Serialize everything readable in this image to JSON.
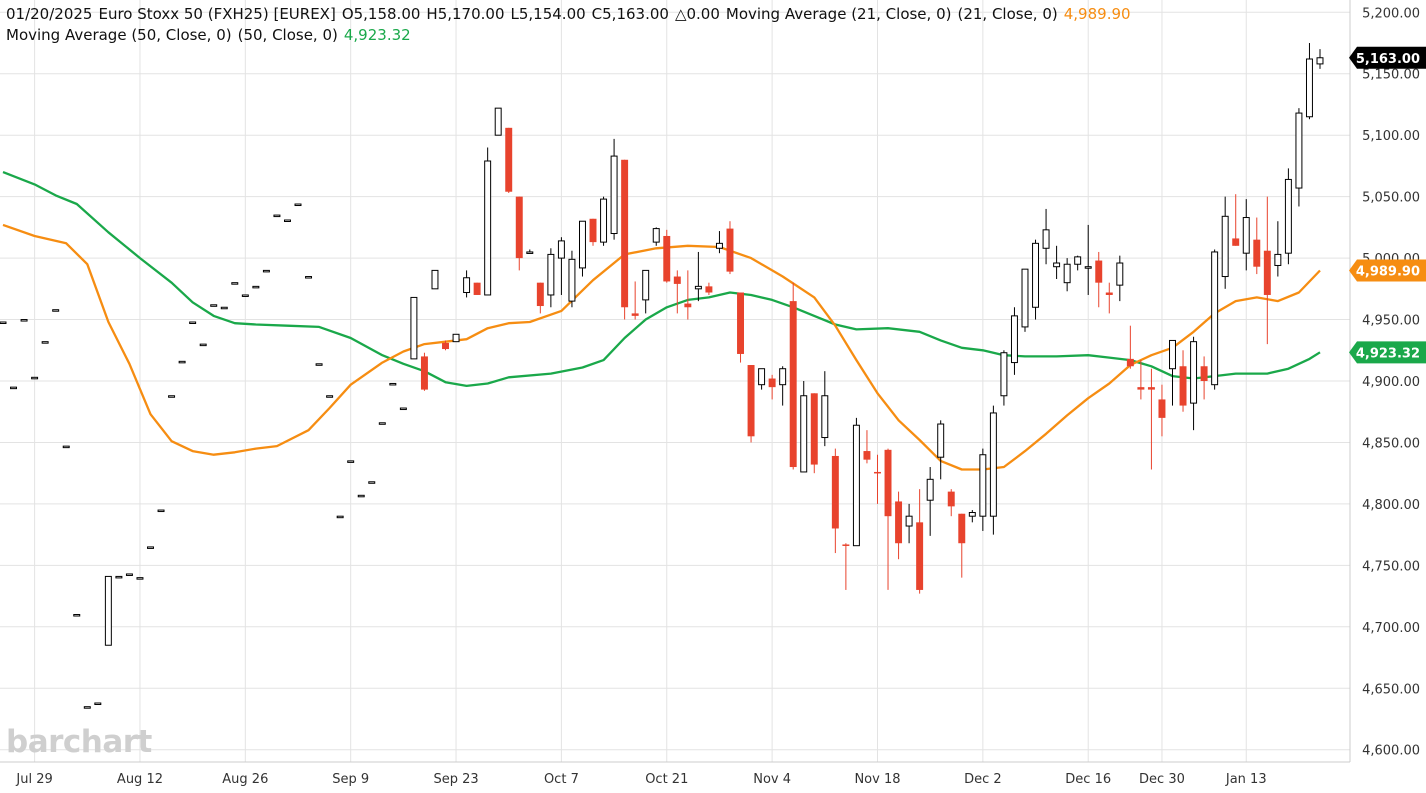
{
  "header": {
    "date": "01/20/2025",
    "instrument": "Euro Stoxx 50 (FXH25) [EUREX]",
    "open": "O5,158.00",
    "high": "H5,170.00",
    "low": "L5,154.00",
    "close": "C5,163.00",
    "change": "△0.00",
    "ma21_label": "Moving Average (21, Close, 0)",
    "ma21_params": "(21, Close, 0)",
    "ma21_value": "4,989.90",
    "ma50_label": "Moving Average (50, Close, 0)",
    "ma50_params": "(50, Close, 0)",
    "ma50_value": "4,923.32"
  },
  "logo": "barchart",
  "colors": {
    "up": "#000000",
    "down": "#e8432d",
    "ma21": "#f68d12",
    "ma50": "#1aa84a",
    "grid": "#e3e3e3",
    "price_tag": "#000000"
  },
  "chart_data": {
    "type": "candlestick",
    "title": "Euro Stoxx 50 (FXH25) [EUREX]",
    "ylim": [
      4590,
      5210
    ],
    "y_ticks": [
      5200,
      5150,
      5100,
      5050,
      5000,
      4950,
      4900,
      4850,
      4800,
      4750,
      4700,
      4650,
      4600
    ],
    "y_tick_labels": [
      "5,200.00",
      "5,150.00",
      "5,100.00",
      "5,050.00",
      "5,000.00",
      "4,950.00",
      "4,900.00",
      "4,850.00",
      "4,800.00",
      "4,750.00",
      "4,700.00",
      "4,650.00",
      "4,600.00"
    ],
    "x_tick_labels": [
      "Jul 29",
      "Aug 12",
      "Aug 26",
      "Sep 9",
      "Sep 23",
      "Oct 7",
      "Oct 21",
      "Nov 4",
      "Nov 18",
      "Dec 2",
      "Dec 16",
      "Dec 30",
      "Jan 13"
    ],
    "x_tick_index": [
      3,
      13,
      23,
      33,
      43,
      53,
      63,
      73,
      83,
      93,
      103,
      110,
      118
    ],
    "last_price_label": "5,163.00",
    "ma21_label": "4,989.90",
    "ma50_label": "4,923.32",
    "candles": [
      {
        "o": 4948,
        "h": 4948,
        "l": 4948,
        "c": 4948
      },
      {
        "o": 4895,
        "h": 4895,
        "l": 4895,
        "c": 4895
      },
      {
        "o": 4950,
        "h": 4950,
        "l": 4950,
        "c": 4950
      },
      {
        "o": 4903,
        "h": 4903,
        "l": 4903,
        "c": 4903
      },
      {
        "o": 4932,
        "h": 4932,
        "l": 4932,
        "c": 4932
      },
      {
        "o": 4958,
        "h": 4958,
        "l": 4958,
        "c": 4958
      },
      {
        "o": 4847,
        "h": 4847,
        "l": 4847,
        "c": 4847
      },
      {
        "o": 4710,
        "h": 4710,
        "l": 4710,
        "c": 4710
      },
      {
        "o": 4635,
        "h": 4635,
        "l": 4635,
        "c": 4635
      },
      {
        "o": 4638,
        "h": 4638,
        "l": 4638,
        "c": 4638
      },
      {
        "o": 4685,
        "h": 4741,
        "l": 4685,
        "c": 4741
      },
      {
        "o": 4741,
        "h": 4741,
        "l": 4741,
        "c": 4741
      },
      {
        "o": 4743,
        "h": 4743,
        "l": 4743,
        "c": 4743
      },
      {
        "o": 4740,
        "h": 4740,
        "l": 4740,
        "c": 4740
      },
      {
        "o": 4765,
        "h": 4765,
        "l": 4765,
        "c": 4765
      },
      {
        "o": 4795,
        "h": 4795,
        "l": 4795,
        "c": 4795
      },
      {
        "o": 4888,
        "h": 4888,
        "l": 4888,
        "c": 4888
      },
      {
        "o": 4916,
        "h": 4916,
        "l": 4916,
        "c": 4916
      },
      {
        "o": 4948,
        "h": 4948,
        "l": 4948,
        "c": 4948
      },
      {
        "o": 4930,
        "h": 4930,
        "l": 4930,
        "c": 4930
      },
      {
        "o": 4962,
        "h": 4962,
        "l": 4962,
        "c": 4962
      },
      {
        "o": 4960,
        "h": 4960,
        "l": 4960,
        "c": 4960
      },
      {
        "o": 4980,
        "h": 4980,
        "l": 4980,
        "c": 4980
      },
      {
        "o": 4970,
        "h": 4970,
        "l": 4970,
        "c": 4970
      },
      {
        "o": 4977,
        "h": 4977,
        "l": 4977,
        "c": 4977
      },
      {
        "o": 4990,
        "h": 4990,
        "l": 4990,
        "c": 4990
      },
      {
        "o": 5035,
        "h": 5035,
        "l": 5035,
        "c": 5035
      },
      {
        "o": 5031,
        "h": 5031,
        "l": 5031,
        "c": 5031
      },
      {
        "o": 5044,
        "h": 5044,
        "l": 5044,
        "c": 5044
      },
      {
        "o": 4985,
        "h": 4985,
        "l": 4985,
        "c": 4985
      },
      {
        "o": 4914,
        "h": 4914,
        "l": 4914,
        "c": 4914
      },
      {
        "o": 4888,
        "h": 4888,
        "l": 4888,
        "c": 4888
      },
      {
        "o": 4790,
        "h": 4790,
        "l": 4790,
        "c": 4790
      },
      {
        "o": 4835,
        "h": 4835,
        "l": 4835,
        "c": 4835
      },
      {
        "o": 4807,
        "h": 4807,
        "l": 4807,
        "c": 4807
      },
      {
        "o": 4818,
        "h": 4818,
        "l": 4818,
        "c": 4818
      },
      {
        "o": 4866,
        "h": 4866,
        "l": 4866,
        "c": 4866
      },
      {
        "o": 4898,
        "h": 4898,
        "l": 4898,
        "c": 4898
      },
      {
        "o": 4878,
        "h": 4878,
        "l": 4878,
        "c": 4878
      },
      {
        "o": 4918,
        "h": 4968,
        "l": 4918,
        "c": 4968
      },
      {
        "o": 4920,
        "h": 4923,
        "l": 4892,
        "c": 4893
      },
      {
        "o": 4975,
        "h": 4990,
        "l": 4975,
        "c": 4990
      },
      {
        "o": 4931,
        "h": 4933,
        "l": 4925,
        "c": 4926
      },
      {
        "o": 4932,
        "h": 4938,
        "l": 4932,
        "c": 4938
      },
      {
        "o": 4972,
        "h": 4990,
        "l": 4968,
        "c": 4984
      },
      {
        "o": 4980,
        "h": 4980,
        "l": 4970,
        "c": 4970
      },
      {
        "o": 4970,
        "h": 5090,
        "l": 4970,
        "c": 5079
      },
      {
        "o": 5100,
        "h": 5122,
        "l": 5100,
        "c": 5122
      },
      {
        "o": 5106,
        "h": 5106,
        "l": 5053,
        "c": 5054
      },
      {
        "o": 5050,
        "h": 5050,
        "l": 4990,
        "c": 5000
      },
      {
        "o": 5004,
        "h": 5007,
        "l": 5004,
        "c": 5005
      },
      {
        "o": 4980,
        "h": 4980,
        "l": 4955,
        "c": 4961
      },
      {
        "o": 4970,
        "h": 5008,
        "l": 4960,
        "c": 5003
      },
      {
        "o": 5000,
        "h": 5017,
        "l": 4970,
        "c": 5014
      },
      {
        "o": 4965,
        "h": 5006,
        "l": 4960,
        "c": 4999
      },
      {
        "o": 4992,
        "h": 5030,
        "l": 4985,
        "c": 5030
      },
      {
        "o": 5032,
        "h": 5032,
        "l": 5010,
        "c": 5013
      },
      {
        "o": 5013,
        "h": 5050,
        "l": 5010,
        "c": 5048
      },
      {
        "o": 5020,
        "h": 5097,
        "l": 5015,
        "c": 5083
      },
      {
        "o": 5080,
        "h": 5080,
        "l": 4950,
        "c": 4960
      },
      {
        "o": 4955,
        "h": 4981,
        "l": 4950,
        "c": 4953
      },
      {
        "o": 4966,
        "h": 4990,
        "l": 4955,
        "c": 4990
      },
      {
        "o": 5013,
        "h": 5025,
        "l": 5010,
        "c": 5024
      },
      {
        "o": 5018,
        "h": 5023,
        "l": 4980,
        "c": 4981
      },
      {
        "o": 4985,
        "h": 4990,
        "l": 4955,
        "c": 4979
      },
      {
        "o": 4963,
        "h": 4990,
        "l": 4950,
        "c": 4960
      },
      {
        "o": 4975,
        "h": 5005,
        "l": 4965,
        "c": 4977
      },
      {
        "o": 4977,
        "h": 4980,
        "l": 4970,
        "c": 4972
      },
      {
        "o": 5008,
        "h": 5022,
        "l": 5004,
        "c": 5012
      },
      {
        "o": 5024,
        "h": 5030,
        "l": 4987,
        "c": 4989
      },
      {
        "o": 4972,
        "h": 4972,
        "l": 4915,
        "c": 4922
      },
      {
        "o": 4913,
        "h": 4913,
        "l": 4850,
        "c": 4855
      },
      {
        "o": 4897,
        "h": 4910,
        "l": 4893,
        "c": 4910
      },
      {
        "o": 4902,
        "h": 4905,
        "l": 4885,
        "c": 4895
      },
      {
        "o": 4897,
        "h": 4912,
        "l": 4880,
        "c": 4910
      },
      {
        "o": 4965,
        "h": 4980,
        "l": 4828,
        "c": 4830
      },
      {
        "o": 4826,
        "h": 4900,
        "l": 4826,
        "c": 4888
      },
      {
        "o": 4890,
        "h": 4890,
        "l": 4825,
        "c": 4832
      },
      {
        "o": 4854,
        "h": 4908,
        "l": 4847,
        "c": 4888
      },
      {
        "o": 4839,
        "h": 4845,
        "l": 4760,
        "c": 4780
      },
      {
        "o": 4767,
        "h": 4768,
        "l": 4730,
        "c": 4766
      },
      {
        "o": 4766,
        "h": 4870,
        "l": 4766,
        "c": 4864
      },
      {
        "o": 4843,
        "h": 4860,
        "l": 4833,
        "c": 4836
      },
      {
        "o": 4826,
        "h": 4840,
        "l": 4800,
        "c": 4825
      },
      {
        "o": 4844,
        "h": 4845,
        "l": 4730,
        "c": 4790
      },
      {
        "o": 4802,
        "h": 4810,
        "l": 4755,
        "c": 4768
      },
      {
        "o": 4782,
        "h": 4800,
        "l": 4768,
        "c": 4790
      },
      {
        "o": 4785,
        "h": 4812,
        "l": 4727,
        "c": 4730
      },
      {
        "o": 4803,
        "h": 4830,
        "l": 4774,
        "c": 4820
      },
      {
        "o": 4838,
        "h": 4868,
        "l": 4820,
        "c": 4865
      },
      {
        "o": 4810,
        "h": 4812,
        "l": 4790,
        "c": 4798
      },
      {
        "o": 4792,
        "h": 4792,
        "l": 4740,
        "c": 4768
      },
      {
        "o": 4790,
        "h": 4795,
        "l": 4785,
        "c": 4793
      },
      {
        "o": 4790,
        "h": 4845,
        "l": 4778,
        "c": 4840
      },
      {
        "o": 4790,
        "h": 4880,
        "l": 4775,
        "c": 4874
      },
      {
        "o": 4888,
        "h": 4925,
        "l": 4880,
        "c": 4923
      },
      {
        "o": 4915,
        "h": 4960,
        "l": 4905,
        "c": 4953
      },
      {
        "o": 4944,
        "h": 4990,
        "l": 4940,
        "c": 4991
      },
      {
        "o": 4960,
        "h": 5015,
        "l": 4950,
        "c": 5012
      },
      {
        "o": 5008,
        "h": 5040,
        "l": 4995,
        "c": 5023
      },
      {
        "o": 4993,
        "h": 5010,
        "l": 4983,
        "c": 4996
      },
      {
        "o": 4980,
        "h": 5000,
        "l": 4973,
        "c": 4995
      },
      {
        "o": 4995,
        "h": 5002,
        "l": 4990,
        "c": 5001
      },
      {
        "o": 4993,
        "h": 5027,
        "l": 4970,
        "c": 4993
      },
      {
        "o": 4998,
        "h": 5005,
        "l": 4960,
        "c": 4980
      },
      {
        "o": 4972,
        "h": 4980,
        "l": 4955,
        "c": 4970
      },
      {
        "o": 4978,
        "h": 5002,
        "l": 4965,
        "c": 4996
      },
      {
        "o": 4918,
        "h": 4945,
        "l": 4910,
        "c": 4912
      },
      {
        "o": 4895,
        "h": 4917,
        "l": 4885,
        "c": 4893
      },
      {
        "o": 4895,
        "h": 4910,
        "l": 4828,
        "c": 4893
      },
      {
        "o": 4885,
        "h": 4897,
        "l": 4855,
        "c": 4870
      },
      {
        "o": 4910,
        "h": 4933,
        "l": 4880,
        "c": 4933
      },
      {
        "o": 4912,
        "h": 4925,
        "l": 4875,
        "c": 4880
      },
      {
        "o": 4882,
        "h": 4936,
        "l": 4860,
        "c": 4932
      },
      {
        "o": 4912,
        "h": 4920,
        "l": 4885,
        "c": 4900
      },
      {
        "o": 4897,
        "h": 5007,
        "l": 4893,
        "c": 5005
      },
      {
        "o": 4985,
        "h": 5050,
        "l": 4975,
        "c": 5034
      },
      {
        "o": 5016,
        "h": 5052,
        "l": 5010,
        "c": 5010
      },
      {
        "o": 5004,
        "h": 5048,
        "l": 4990,
        "c": 5033
      },
      {
        "o": 5015,
        "h": 5033,
        "l": 4987,
        "c": 4993
      },
      {
        "o": 5006,
        "h": 5050,
        "l": 4930,
        "c": 4970
      },
      {
        "o": 4994,
        "h": 5030,
        "l": 4985,
        "c": 5003
      },
      {
        "o": 5004,
        "h": 5073,
        "l": 4995,
        "c": 5064
      },
      {
        "o": 5057,
        "h": 5122,
        "l": 5042,
        "c": 5118
      },
      {
        "o": 5115,
        "h": 5175,
        "l": 5113,
        "c": 5162
      },
      {
        "o": 5158,
        "h": 5170,
        "l": 5154,
        "c": 5163
      }
    ],
    "ma21": [
      [
        0,
        5027
      ],
      [
        3,
        5018
      ],
      [
        6,
        5012
      ],
      [
        8,
        4995
      ],
      [
        10,
        4948
      ],
      [
        12,
        4914
      ],
      [
        14,
        4873
      ],
      [
        16,
        4851
      ],
      [
        18,
        4843
      ],
      [
        20,
        4840
      ],
      [
        22,
        4842
      ],
      [
        24,
        4845
      ],
      [
        26,
        4847
      ],
      [
        29,
        4860
      ],
      [
        31,
        4878
      ],
      [
        33,
        4897
      ],
      [
        36,
        4915
      ],
      [
        38,
        4924
      ],
      [
        40,
        4930
      ],
      [
        42,
        4932
      ],
      [
        44,
        4934
      ],
      [
        46,
        4943
      ],
      [
        48,
        4947
      ],
      [
        50,
        4948
      ],
      [
        53,
        4957
      ],
      [
        56,
        4982
      ],
      [
        59,
        5003
      ],
      [
        62,
        5008
      ],
      [
        65,
        5010
      ],
      [
        68,
        5009
      ],
      [
        71,
        5000
      ],
      [
        74,
        4985
      ],
      [
        77,
        4968
      ],
      [
        79,
        4945
      ],
      [
        81,
        4917
      ],
      [
        83,
        4890
      ],
      [
        85,
        4868
      ],
      [
        87,
        4852
      ],
      [
        89,
        4835
      ],
      [
        91,
        4828
      ],
      [
        93,
        4828
      ],
      [
        95,
        4830
      ],
      [
        97,
        4843
      ],
      [
        99,
        4857
      ],
      [
        101,
        4872
      ],
      [
        103,
        4886
      ],
      [
        105,
        4898
      ],
      [
        107,
        4913
      ],
      [
        109,
        4921
      ],
      [
        111,
        4927
      ],
      [
        113,
        4940
      ],
      [
        115,
        4955
      ],
      [
        117,
        4965
      ],
      [
        119,
        4968
      ],
      [
        121,
        4965
      ],
      [
        123,
        4972
      ],
      [
        125,
        4989.9
      ]
    ],
    "ma50": [
      [
        0,
        5070
      ],
      [
        3,
        5060
      ],
      [
        5,
        5051
      ],
      [
        7,
        5044
      ],
      [
        10,
        5021
      ],
      [
        13,
        5000
      ],
      [
        16,
        4980
      ],
      [
        18,
        4964
      ],
      [
        20,
        4953
      ],
      [
        22,
        4947
      ],
      [
        24,
        4946
      ],
      [
        27,
        4945
      ],
      [
        30,
        4944
      ],
      [
        33,
        4935
      ],
      [
        36,
        4921
      ],
      [
        38,
        4914
      ],
      [
        40,
        4908
      ],
      [
        42,
        4899
      ],
      [
        44,
        4896
      ],
      [
        46,
        4898
      ],
      [
        48,
        4903
      ],
      [
        52,
        4906
      ],
      [
        55,
        4911
      ],
      [
        57,
        4917
      ],
      [
        59,
        4935
      ],
      [
        61,
        4950
      ],
      [
        63,
        4960
      ],
      [
        65,
        4966
      ],
      [
        67,
        4968
      ],
      [
        69,
        4972
      ],
      [
        71,
        4970
      ],
      [
        73,
        4966
      ],
      [
        75,
        4960
      ],
      [
        77,
        4953
      ],
      [
        79,
        4946
      ],
      [
        81,
        4942
      ],
      [
        84,
        4943
      ],
      [
        87,
        4940
      ],
      [
        89,
        4933
      ],
      [
        91,
        4927
      ],
      [
        93,
        4925
      ],
      [
        95,
        4921
      ],
      [
        97,
        4920
      ],
      [
        100,
        4920
      ],
      [
        103,
        4921
      ],
      [
        105,
        4919
      ],
      [
        107,
        4917
      ],
      [
        109,
        4912
      ],
      [
        111,
        4904
      ],
      [
        113,
        4902
      ],
      [
        115,
        4904
      ],
      [
        117,
        4906
      ],
      [
        120,
        4906
      ],
      [
        122,
        4910
      ],
      [
        124,
        4918
      ],
      [
        125,
        4923.32
      ]
    ]
  }
}
